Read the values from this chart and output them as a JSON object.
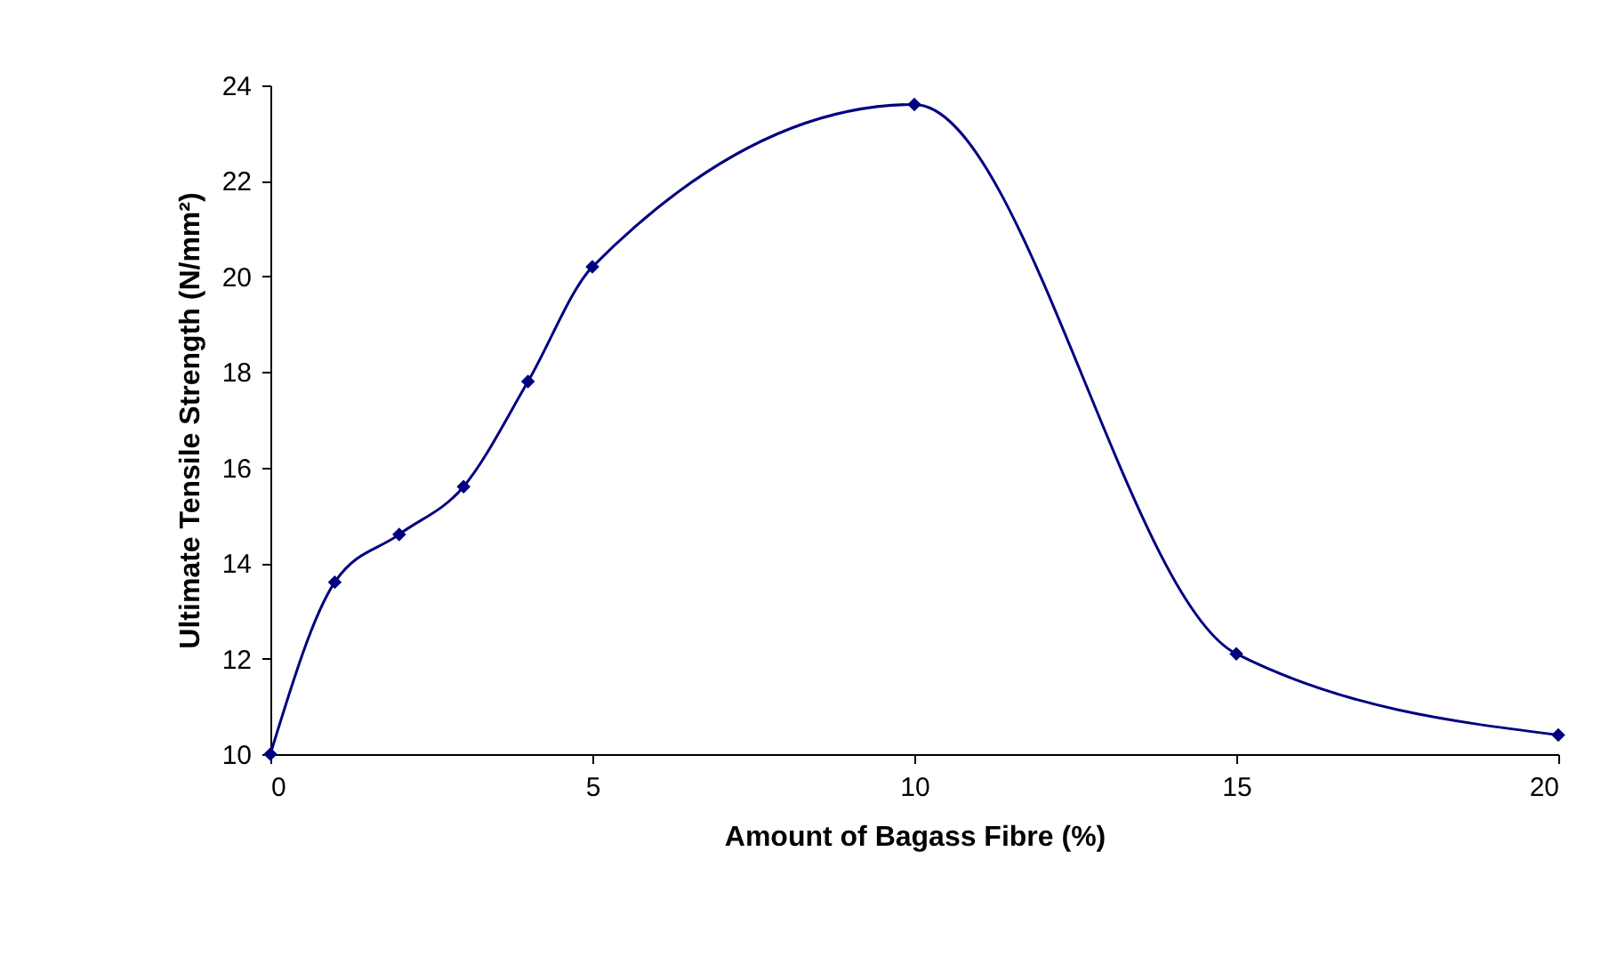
{
  "chart_data": {
    "type": "line",
    "xlabel": "Amount of Bagass Fibre (%)",
    "ylabel": "Ultimate Tensile Strength (N/mm²)",
    "x": [
      0,
      1,
      2,
      3,
      4,
      5,
      10,
      15,
      20
    ],
    "series": [
      {
        "color": "#000080",
        "values": [
          10,
          13.6,
          14.6,
          15.6,
          17.8,
          20.2,
          23.6,
          12.1,
          10.4
        ]
      }
    ],
    "xlim": [
      0,
      20
    ],
    "xticks": [
      0,
      5,
      10,
      15,
      20
    ],
    "ylim": [
      10,
      24
    ],
    "yticks": [
      10,
      12,
      14,
      16,
      18,
      20,
      22,
      24
    ],
    "grid": false,
    "marker": "diamond",
    "line_style": "solid"
  }
}
